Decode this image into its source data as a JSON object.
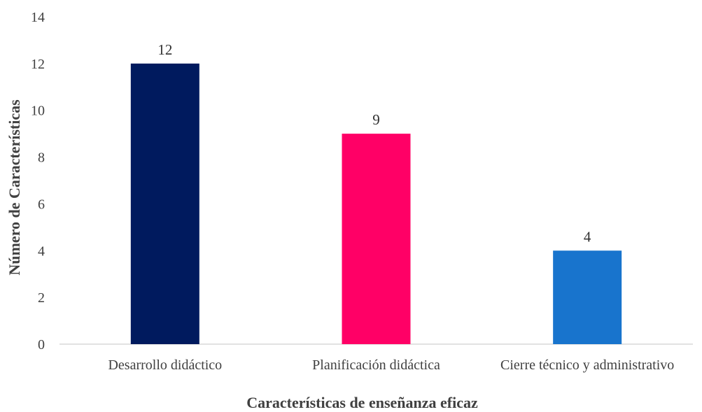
{
  "chart_data": {
    "type": "bar",
    "title": "",
    "categories": [
      "Desarrollo didáctico",
      "Planificación didáctica",
      "Cierre técnico y administrativo"
    ],
    "values": [
      12,
      9,
      4
    ],
    "colors": [
      "#001a5e",
      "#ff0066",
      "#1874cd"
    ],
    "xlabel": "Características de enseñanza eficaz",
    "ylabel": "Número de Características",
    "ylim": [
      0,
      14
    ],
    "yticks": [
      0,
      2,
      4,
      6,
      8,
      10,
      12,
      14
    ],
    "grid": false,
    "legend": "none",
    "data_labels": true
  }
}
